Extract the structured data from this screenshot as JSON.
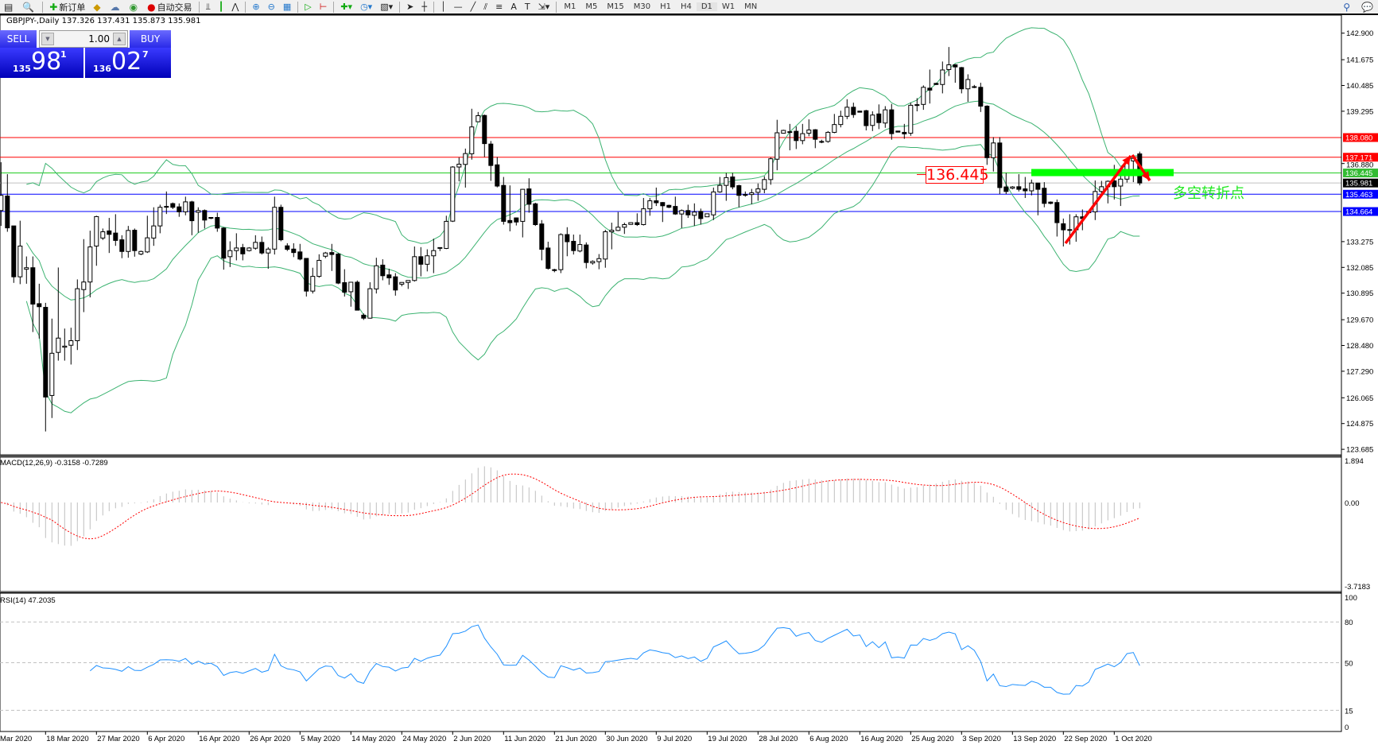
{
  "toolbar": {
    "new_order": "新订单",
    "autotrading": "自动交易",
    "timeframes": [
      "M1",
      "M5",
      "M15",
      "M30",
      "H1",
      "H4",
      "D1",
      "W1",
      "MN"
    ],
    "active_timeframe": "D1"
  },
  "chart_header": {
    "text": "GBPJPY-,Daily  137.326 137.431 135.873 135.981"
  },
  "one_click": {
    "sell_label": "SELL",
    "buy_label": "BUY",
    "lot": "1.00",
    "sell_price": {
      "small": "135",
      "big": "98",
      "sup": "1"
    },
    "buy_price": {
      "small": "136",
      "big": "02",
      "sup": "7"
    }
  },
  "annotations": {
    "price_label": "136.445",
    "chinese_note": "多空转折点",
    "green_zone_price": 136.445,
    "arrow_color": "#ff0000"
  },
  "colors": {
    "bands": "#3cb371",
    "macd_hist": "#c0c0c0",
    "macd_signal": "#ff0000",
    "rsi": "#1e90ff"
  },
  "chart_data": {
    "type": "candlestick",
    "symbol": "GBPJPY-",
    "timeframe": "Daily",
    "ylim": [
      123.685,
      143.6
    ],
    "price_ticks": [
      "142.900",
      "141.675",
      "140.485",
      "139.295",
      "136.880",
      "133.275",
      "132.085",
      "130.895",
      "129.670",
      "128.480",
      "127.290",
      "126.065",
      "124.875",
      "123.685"
    ],
    "hlines": [
      {
        "price": "138.080",
        "color": "#ff0000",
        "label_bg": "#ff0000"
      },
      {
        "price": "137.171",
        "color": "#ff0000",
        "label_bg": "#ff0000"
      },
      {
        "price": "136.445",
        "color": "#22cc22",
        "label_bg": "#33bb33"
      },
      {
        "price": "135.981",
        "color": "#c0c0c0",
        "label_bg": "#000000"
      },
      {
        "price": "135.463",
        "color": "#0000ff",
        "label_bg": "#0000ff"
      },
      {
        "price": "134.664",
        "color": "#0000ff",
        "label_bg": "#0000ff"
      }
    ],
    "date_labels": [
      "Mar 2020",
      "18 Mar 2020",
      "27 Mar 2020",
      "6 Apr 2020",
      "16 Apr 2020",
      "26 Apr 2020",
      "5 May 2020",
      "14 May 2020",
      "24 May 2020",
      "2 Jun 2020",
      "11 Jun 2020",
      "21 Jun 2020",
      "30 Jun 2020",
      "9 Jul 2020",
      "19 Jul 2020",
      "28 Jul 2020",
      "6 Aug 2020",
      "16 Aug 2020",
      "25 Aug 2020",
      "3 Sep 2020",
      "13 Sep 2020",
      "22 Sep 2020",
      "1 Oct 2020"
    ],
    "ohlc": [
      [
        134.71,
        136.94,
        134.0,
        135.41
      ],
      [
        135.38,
        136.39,
        133.73,
        133.91
      ],
      [
        134.0,
        134.0,
        131.37,
        131.65
      ],
      [
        131.65,
        134.24,
        131.31,
        133.07
      ],
      [
        132.0,
        132.59,
        131.33,
        132.07
      ],
      [
        132.07,
        132.59,
        129.1,
        130.39
      ],
      [
        130.41,
        131.33,
        128.8,
        130.27
      ],
      [
        130.24,
        130.45,
        124.51,
        126.1
      ],
      [
        126.17,
        129.72,
        125.13,
        128.12
      ],
      [
        128.16,
        132.08,
        127.78,
        128.82
      ],
      [
        128.4,
        129.26,
        127.78,
        128.45
      ],
      [
        128.49,
        129.3,
        127.6,
        128.7
      ],
      [
        128.7,
        131.53,
        128.27,
        131.1
      ],
      [
        131.06,
        133.39,
        130.02,
        131.41
      ],
      [
        131.41,
        133.78,
        130.7,
        133.03
      ],
      [
        133.07,
        134.47,
        132.16,
        134.43
      ],
      [
        133.44,
        133.88,
        133.35,
        133.73
      ],
      [
        133.77,
        134.37,
        132.75,
        133.61
      ],
      [
        133.67,
        134.54,
        133.08,
        133.33
      ],
      [
        133.36,
        133.57,
        132.51,
        132.82
      ],
      [
        132.82,
        134.0,
        132.53,
        133.79
      ],
      [
        133.8,
        133.88,
        132.58,
        132.86
      ],
      [
        132.7,
        132.86,
        132.65,
        132.82
      ],
      [
        132.8,
        134.47,
        132.75,
        133.45
      ],
      [
        133.44,
        134.86,
        133.08,
        134.0
      ],
      [
        134.0,
        134.98,
        133.66,
        134.86
      ],
      [
        134.9,
        135.59,
        134.55,
        134.9
      ],
      [
        135.03,
        135.08,
        134.78,
        134.86
      ],
      [
        134.88,
        135.04,
        134.42,
        134.65
      ],
      [
        134.65,
        135.35,
        134.49,
        135.11
      ],
      [
        135.11,
        135.16,
        133.57,
        134.24
      ],
      [
        134.63,
        134.86,
        133.69,
        134.71
      ],
      [
        134.71,
        134.76,
        133.88,
        134.27
      ],
      [
        134.39,
        134.41,
        134.31,
        134.39
      ],
      [
        134.39,
        134.61,
        133.73,
        133.9
      ],
      [
        133.9,
        133.94,
        131.98,
        132.51
      ],
      [
        132.58,
        133.29,
        132.1,
        132.86
      ],
      [
        132.86,
        133.66,
        132.41,
        132.98
      ],
      [
        133.0,
        133.17,
        132.41,
        132.71
      ],
      [
        132.86,
        133.02,
        132.82,
        132.98
      ],
      [
        132.97,
        133.57,
        132.9,
        133.24
      ],
      [
        133.24,
        133.51,
        132.68,
        132.75
      ],
      [
        132.75,
        133.02,
        132.02,
        132.93
      ],
      [
        132.93,
        135.35,
        132.68,
        134.86
      ],
      [
        134.86,
        134.98,
        133.29,
        133.36
      ],
      [
        133.08,
        133.2,
        132.84,
        132.92
      ],
      [
        132.93,
        133.2,
        132.56,
        132.77
      ],
      [
        132.8,
        133.17,
        132.41,
        132.47
      ],
      [
        132.5,
        132.5,
        130.74,
        130.99
      ],
      [
        130.99,
        132.07,
        130.88,
        131.67
      ],
      [
        131.67,
        132.69,
        131.61,
        132.41
      ],
      [
        132.6,
        132.8,
        132.51,
        132.75
      ],
      [
        132.77,
        133.17,
        131.92,
        132.68
      ],
      [
        132.7,
        132.75,
        131.31,
        131.36
      ],
      [
        131.38,
        132.0,
        130.74,
        130.94
      ],
      [
        130.96,
        131.4,
        130.27,
        131.4
      ],
      [
        131.4,
        131.48,
        130.11,
        130.11
      ],
      [
        129.88,
        129.96,
        129.66,
        129.74
      ],
      [
        129.74,
        131.4,
        129.72,
        131.1
      ],
      [
        131.09,
        132.53,
        130.88,
        132.16
      ],
      [
        132.19,
        132.46,
        131.49,
        131.7
      ],
      [
        131.74,
        132.02,
        131.28,
        131.6
      ],
      [
        131.65,
        131.82,
        130.78,
        131.04
      ],
      [
        131.31,
        131.4,
        131.21,
        131.39
      ],
      [
        131.39,
        131.48,
        131.09,
        131.48
      ],
      [
        131.48,
        133.05,
        131.43,
        132.58
      ],
      [
        132.58,
        133.02,
        131.67,
        132.23
      ],
      [
        132.23,
        132.92,
        131.9,
        132.62
      ],
      [
        132.62,
        133.41,
        131.82,
        132.86
      ],
      [
        133.0,
        133.0,
        132.84,
        133.0
      ],
      [
        132.96,
        134.47,
        132.93,
        134.21
      ],
      [
        134.22,
        136.76,
        134.18,
        136.72
      ],
      [
        136.72,
        137.16,
        136.06,
        136.85
      ],
      [
        136.84,
        137.57,
        135.77,
        137.34
      ],
      [
        137.33,
        139.41,
        137.06,
        138.57
      ],
      [
        138.81,
        139.26,
        138.81,
        139.09
      ],
      [
        139.1,
        139.14,
        137.18,
        137.8
      ],
      [
        137.78,
        137.92,
        136.08,
        136.79
      ],
      [
        136.82,
        137.18,
        135.78,
        135.84
      ],
      [
        135.87,
        136.26,
        134.06,
        134.21
      ],
      [
        134.25,
        135.87,
        133.75,
        134.15
      ],
      [
        134.37,
        134.39,
        134.02,
        134.18
      ],
      [
        134.21,
        135.71,
        133.47,
        135.69
      ],
      [
        135.71,
        136.2,
        134.61,
        135.0
      ],
      [
        135.02,
        135.07,
        134.0,
        134.06
      ],
      [
        134.09,
        134.27,
        132.41,
        132.92
      ],
      [
        132.98,
        133.27,
        131.98,
        132.04
      ],
      [
        131.98,
        132.02,
        131.86,
        131.94
      ],
      [
        131.98,
        133.66,
        131.82,
        133.6
      ],
      [
        133.6,
        133.94,
        132.6,
        133.27
      ],
      [
        133.29,
        133.6,
        132.68,
        132.86
      ],
      [
        132.84,
        133.6,
        132.78,
        133.14
      ],
      [
        133.12,
        133.24,
        132.04,
        132.31
      ],
      [
        132.29,
        132.41,
        132.21,
        132.36
      ],
      [
        132.35,
        132.7,
        132.0,
        132.49
      ],
      [
        132.47,
        133.82,
        132.07,
        133.73
      ],
      [
        133.73,
        134.15,
        132.92,
        133.8
      ],
      [
        133.79,
        134.64,
        133.76,
        133.94
      ],
      [
        133.94,
        134.15,
        133.63,
        134.06
      ],
      [
        134.07,
        134.17,
        134.05,
        134.15
      ],
      [
        134.15,
        134.58,
        134.0,
        134.06
      ],
      [
        134.06,
        135.29,
        134.02,
        134.79
      ],
      [
        134.79,
        135.29,
        134.47,
        135.16
      ],
      [
        135.16,
        135.77,
        134.92,
        135.07
      ],
      [
        135.08,
        135.1,
        134.18,
        134.93
      ],
      [
        134.95,
        134.98,
        134.82,
        134.86
      ],
      [
        134.9,
        135.35,
        134.51,
        134.55
      ],
      [
        134.55,
        134.76,
        133.9,
        134.71
      ],
      [
        134.71,
        134.98,
        134.37,
        134.51
      ],
      [
        134.49,
        135.04,
        134.0,
        134.64
      ],
      [
        134.67,
        134.8,
        134.06,
        134.34
      ],
      [
        134.42,
        134.56,
        134.42,
        134.56
      ],
      [
        134.51,
        135.77,
        134.27,
        135.57
      ],
      [
        135.57,
        136.26,
        135.53,
        135.87
      ],
      [
        135.87,
        136.45,
        135.16,
        136.23
      ],
      [
        136.26,
        136.45,
        135.69,
        135.8
      ],
      [
        135.86,
        135.9,
        134.86,
        135.41
      ],
      [
        135.45,
        135.59,
        135.35,
        135.45
      ],
      [
        135.45,
        135.71,
        135.0,
        135.53
      ],
      [
        135.55,
        135.96,
        135.16,
        135.71
      ],
      [
        135.69,
        136.29,
        135.51,
        136.14
      ],
      [
        136.14,
        137.16,
        135.9,
        137.1
      ],
      [
        137.08,
        138.9,
        136.57,
        138.3
      ],
      [
        138.28,
        138.44,
        138.26,
        138.41
      ],
      [
        138.34,
        138.71,
        137.49,
        138.35
      ],
      [
        138.37,
        138.59,
        137.55,
        137.94
      ],
      [
        137.94,
        138.71,
        137.77,
        138.26
      ],
      [
        138.28,
        138.92,
        138.14,
        138.43
      ],
      [
        138.44,
        138.47,
        137.59,
        138.0
      ],
      [
        137.9,
        137.98,
        137.82,
        137.9
      ],
      [
        137.9,
        138.38,
        137.84,
        138.32
      ],
      [
        138.32,
        139.17,
        138.28,
        138.68
      ],
      [
        138.68,
        139.32,
        138.55,
        139.06
      ],
      [
        139.06,
        139.85,
        138.93,
        139.48
      ],
      [
        139.48,
        139.69,
        138.99,
        139.14
      ],
      [
        139.3,
        139.3,
        139.25,
        139.25
      ],
      [
        139.32,
        139.36,
        138.41,
        138.63
      ],
      [
        138.64,
        139.29,
        138.38,
        139.12
      ],
      [
        139.17,
        139.61,
        138.47,
        138.77
      ],
      [
        138.75,
        139.53,
        138.53,
        139.36
      ],
      [
        139.36,
        139.63,
        137.98,
        138.26
      ],
      [
        138.38,
        138.38,
        138.33,
        138.33
      ],
      [
        138.32,
        138.71,
        138.02,
        138.25
      ],
      [
        138.28,
        139.69,
        138.16,
        139.57
      ],
      [
        139.6,
        139.9,
        139.29,
        139.56
      ],
      [
        139.61,
        140.49,
        139.36,
        140.4
      ],
      [
        140.36,
        141.22,
        139.65,
        140.27
      ],
      [
        140.58,
        140.61,
        140.51,
        140.53
      ],
      [
        140.53,
        141.59,
        140.12,
        141.2
      ],
      [
        141.22,
        142.26,
        140.92,
        141.44
      ],
      [
        141.44,
        141.47,
        140.61,
        141.34
      ],
      [
        141.31,
        141.34,
        140.12,
        140.33
      ],
      [
        140.33,
        141.0,
        139.73,
        140.76
      ],
      [
        140.43,
        140.51,
        140.36,
        140.43
      ],
      [
        140.4,
        140.61,
        139.26,
        139.53
      ],
      [
        139.53,
        139.57,
        136.82,
        137.15
      ],
      [
        137.15,
        138.1,
        136.51,
        137.83
      ],
      [
        137.83,
        138.1,
        135.47,
        135.77
      ],
      [
        135.8,
        136.45,
        135.47,
        135.59
      ],
      [
        135.74,
        135.84,
        135.69,
        135.8
      ],
      [
        135.81,
        136.39,
        135.59,
        135.69
      ],
      [
        135.71,
        136.26,
        135.29,
        135.62
      ],
      [
        135.62,
        136.14,
        135.41,
        135.98
      ],
      [
        135.98,
        135.98,
        134.49,
        135.69
      ],
      [
        135.74,
        136.02,
        134.86,
        135.04
      ],
      [
        135.1,
        135.13,
        135.0,
        135.04
      ],
      [
        135.08,
        135.22,
        133.51,
        134.15
      ],
      [
        134.1,
        134.34,
        133.05,
        133.82
      ],
      [
        133.83,
        134.54,
        133.14,
        133.83
      ],
      [
        133.82,
        134.54,
        133.27,
        134.42
      ],
      [
        134.42,
        134.76,
        133.8,
        134.34
      ],
      [
        134.67,
        134.67,
        134.61,
        134.61
      ],
      [
        134.65,
        136.1,
        134.27,
        135.59
      ],
      [
        135.59,
        136.08,
        135.45,
        135.81
      ],
      [
        135.81,
        136.1,
        135.04,
        136.06
      ],
      [
        136.08,
        136.82,
        135.22,
        135.81
      ],
      [
        135.84,
        136.57,
        134.92,
        136.16
      ],
      [
        136.16,
        137.1,
        136.0,
        137.0
      ],
      [
        137.0,
        137.18,
        136.02,
        137.12
      ],
      [
        137.326,
        137.431,
        135.873,
        135.981
      ]
    ],
    "indicators": {
      "bollinger": {
        "period": 20,
        "deviation": 2
      },
      "macd": {
        "label": "MACD(12,26,9) -0.3158 -0.7289",
        "ylim": [
          -3.7183,
          1.894
        ],
        "ticks": [
          "1.894",
          "0.00",
          "-3.7183"
        ]
      },
      "rsi": {
        "label": "RSI(14) 47.2035",
        "ylim": [
          0,
          100
        ],
        "ticks": [
          "100",
          "80",
          "50",
          "15",
          "0"
        ],
        "levels": [
          80,
          50,
          15
        ]
      }
    }
  }
}
